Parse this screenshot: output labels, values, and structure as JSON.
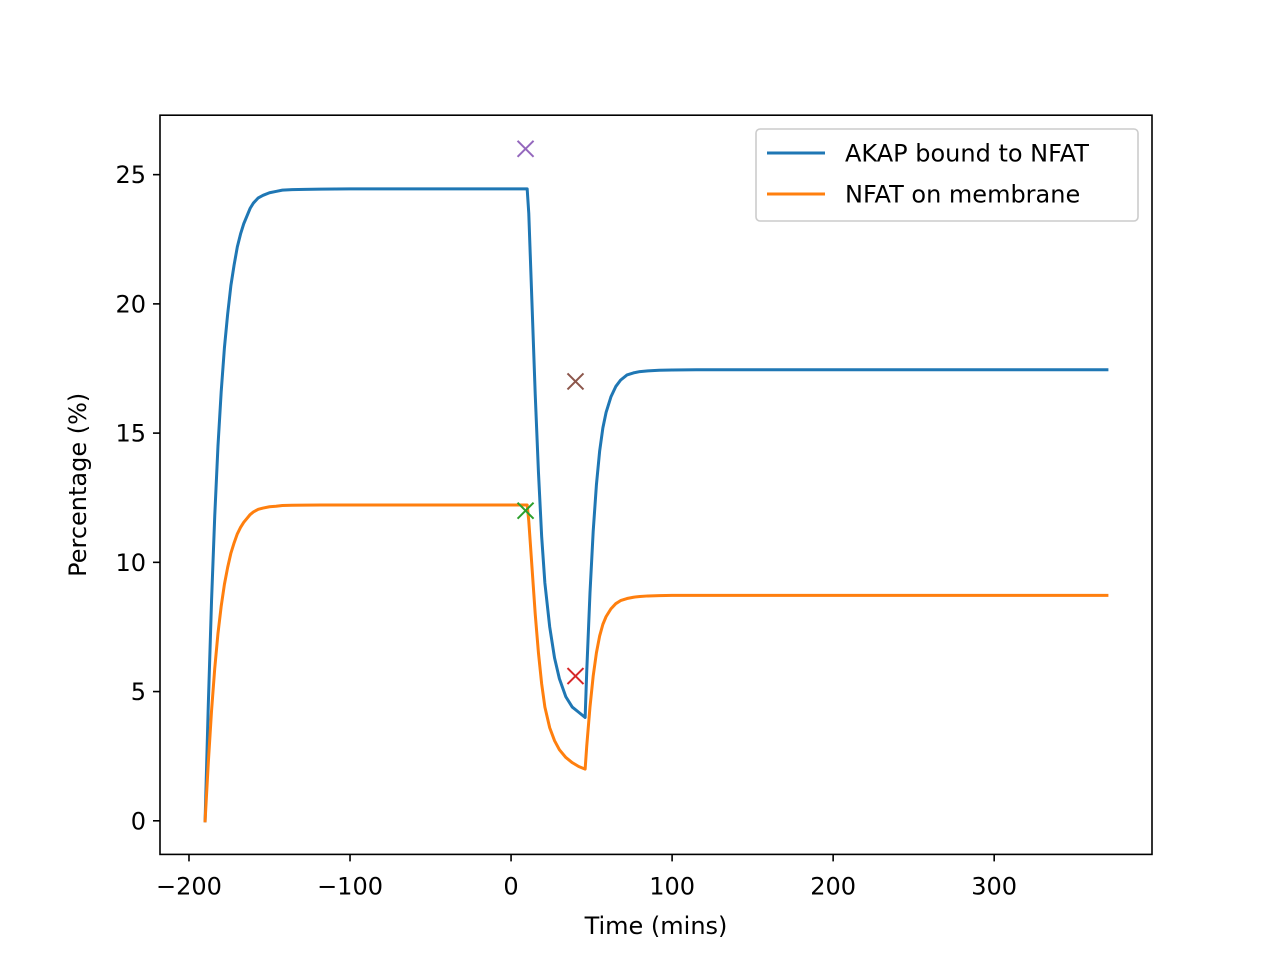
{
  "chart_data": {
    "type": "line",
    "title": "",
    "xlabel": "Time (mins)",
    "ylabel": "Percentage (%)",
    "xlim": [
      -218,
      398
    ],
    "ylim": [
      -1.3,
      27.3
    ],
    "xticks": [
      -200,
      -100,
      0,
      100,
      200,
      300
    ],
    "xtick_labels": [
      "−200",
      "−100",
      "0",
      "100",
      "200",
      "300"
    ],
    "yticks": [
      0,
      5,
      10,
      15,
      20,
      25
    ],
    "ytick_labels": [
      "0",
      "5",
      "10",
      "15",
      "20",
      "25"
    ],
    "grid": false,
    "legend_position": "top-right",
    "series": [
      {
        "name": "AKAP bound to NFAT",
        "color": "#1f77b4",
        "x": [
          -190,
          -188,
          -186,
          -184,
          -182,
          -180,
          -178,
          -176,
          -174,
          -172,
          -170,
          -168,
          -166,
          -164,
          -162,
          -160,
          -157,
          -154,
          -150,
          -146,
          -142,
          -136,
          -128,
          -118,
          -100,
          -60,
          0,
          10,
          11,
          13,
          15,
          17,
          19,
          21,
          24,
          27,
          30,
          34,
          38,
          42,
          46,
          47,
          49,
          51,
          53,
          55,
          57,
          59,
          62,
          65,
          68,
          72,
          76,
          80,
          85,
          92,
          100,
          115,
          140,
          200,
          300,
          370
        ],
        "y": [
          0,
          4.5,
          8.5,
          11.8,
          14.5,
          16.6,
          18.3,
          19.6,
          20.7,
          21.5,
          22.2,
          22.7,
          23.1,
          23.4,
          23.7,
          23.9,
          24.1,
          24.2,
          24.3,
          24.35,
          24.4,
          24.42,
          24.43,
          24.44,
          24.45,
          24.45,
          24.45,
          24.45,
          23.5,
          20,
          16.5,
          13.5,
          11,
          9.2,
          7.5,
          6.3,
          5.5,
          4.8,
          4.4,
          4.2,
          4.0,
          5.8,
          8.8,
          11.2,
          13,
          14.3,
          15.2,
          15.8,
          16.4,
          16.8,
          17.05,
          17.25,
          17.33,
          17.38,
          17.41,
          17.43,
          17.44,
          17.45,
          17.45,
          17.45,
          17.45,
          17.45
        ]
      },
      {
        "name": "NFAT on membrane",
        "color": "#ff7f0e",
        "x": [
          -190,
          -188,
          -186,
          -184,
          -182,
          -180,
          -178,
          -176,
          -174,
          -172,
          -170,
          -168,
          -166,
          -164,
          -162,
          -160,
          -157,
          -154,
          -150,
          -146,
          -142,
          -136,
          -128,
          -118,
          -100,
          -60,
          0,
          10,
          11,
          13,
          15,
          17,
          19,
          21,
          24,
          27,
          30,
          34,
          38,
          42,
          46,
          47,
          49,
          51,
          53,
          55,
          57,
          59,
          62,
          65,
          68,
          72,
          76,
          80,
          85,
          92,
          100,
          115,
          140,
          200,
          300,
          370
        ],
        "y": [
          0,
          2.25,
          4.25,
          5.9,
          7.25,
          8.3,
          9.15,
          9.8,
          10.35,
          10.75,
          11.1,
          11.35,
          11.55,
          11.7,
          11.85,
          11.95,
          12.05,
          12.1,
          12.15,
          12.17,
          12.2,
          12.21,
          12.215,
          12.22,
          12.22,
          12.22,
          12.22,
          12.22,
          11.6,
          9.8,
          8.0,
          6.5,
          5.3,
          4.4,
          3.6,
          3.1,
          2.75,
          2.45,
          2.25,
          2.1,
          2.0,
          2.9,
          4.4,
          5.6,
          6.5,
          7.15,
          7.6,
          7.9,
          8.2,
          8.4,
          8.52,
          8.6,
          8.65,
          8.68,
          8.7,
          8.71,
          8.72,
          8.72,
          8.72,
          8.72,
          8.72,
          8.72
        ]
      }
    ],
    "markers": [
      {
        "x": 9,
        "y": 26,
        "color": "#9467bd"
      },
      {
        "x": 40,
        "y": 17,
        "color": "#8c564b"
      },
      {
        "x": 9,
        "y": 12,
        "color": "#2ca02c"
      },
      {
        "x": 40,
        "y": 5.6,
        "color": "#d62728"
      }
    ]
  }
}
